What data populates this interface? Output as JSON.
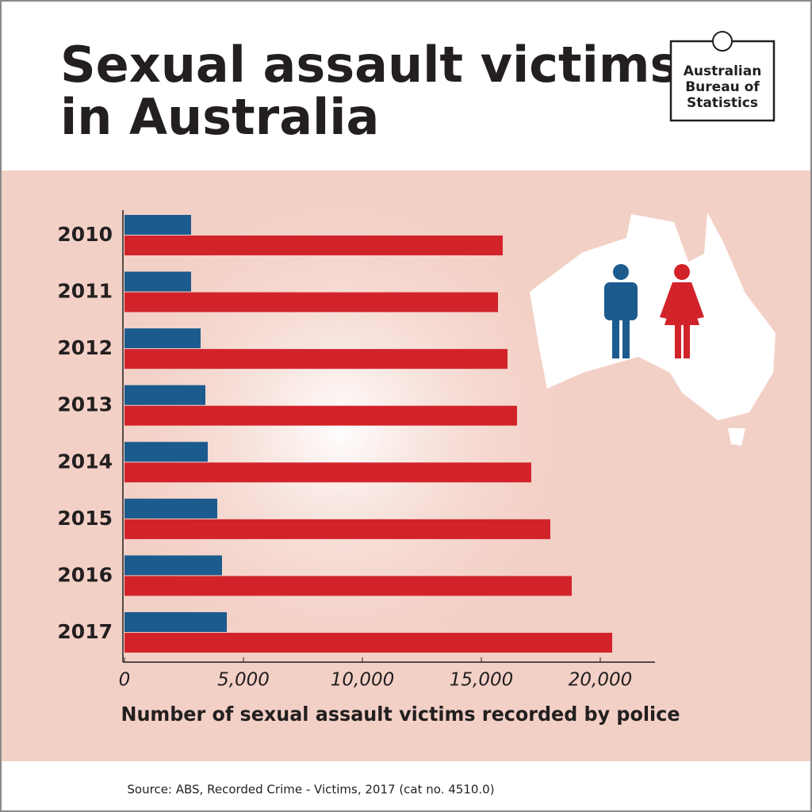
{
  "chart_data": {
    "type": "hbar",
    "title": [
      "Sexual assault victims",
      "in Australia"
    ],
    "logo": [
      "Australian",
      "Bureau of",
      "Statistics"
    ],
    "categories": [
      "2010",
      "2011",
      "2012",
      "2013",
      "2014",
      "2015",
      "2016",
      "2017"
    ],
    "series": [
      {
        "color": "#1c5b8e",
        "values": [
          2800,
          2800,
          3200,
          3400,
          3500,
          3900,
          4100,
          4300
        ]
      },
      {
        "color": "#d2232a",
        "values": [
          15900,
          15700,
          16100,
          16500,
          17100,
          17900,
          18800,
          20500
        ]
      }
    ],
    "xlim": [
      0,
      22300
    ],
    "xticks": [
      0,
      {
        "value": 5000,
        "label": "5,000"
      },
      {
        "value": 10000,
        "label": "10,000"
      },
      {
        "value": 15000,
        "label": "15,000"
      },
      {
        "value": 20000,
        "label": "20,000"
      }
    ],
    "xlabel": "Number of sexual assault victims recorded by police",
    "source": "Source: ABS, Recorded Crime - Victims, 2017 (cat no. 4510.0)"
  }
}
